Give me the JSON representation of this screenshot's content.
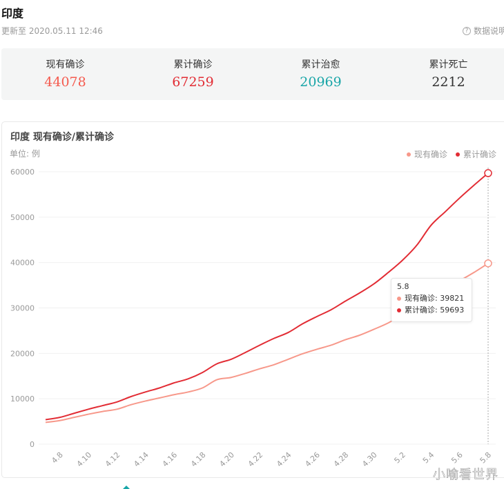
{
  "header": {
    "title": "印度",
    "update_time": "更新至 2020.05.11 12:46",
    "data_note": "数据说明",
    "data_note_icon": "question-circle-icon"
  },
  "stats": [
    {
      "label": "现有确诊",
      "value": "44078",
      "color": "#f55a4e"
    },
    {
      "label": "累计确诊",
      "value": "67259",
      "color": "#e22c34"
    },
    {
      "label": "累计治愈",
      "value": "20969",
      "color": "#18a5a7"
    },
    {
      "label": "累计死亡",
      "value": "2212",
      "color": "#333333"
    }
  ],
  "chart": {
    "title": "印度 现有确诊/累计确诊",
    "unit": "单位: 例",
    "legend": [
      {
        "label": "现有确诊",
        "color": "#f7988a"
      },
      {
        "label": "累计确诊",
        "color": "#e22c34"
      }
    ],
    "tooltip": {
      "date": "5.8",
      "rows": [
        {
          "label": "现有确诊: 39821",
          "color": "#f7988a"
        },
        {
          "label": "累计确诊: 59693",
          "color": "#e22c34"
        }
      ]
    }
  },
  "chart_data": {
    "type": "line",
    "title": "印度 现有确诊/累计确诊",
    "ylabel": "单位: 例",
    "xlabel": "",
    "ylim": [
      0,
      60000
    ],
    "yticks": [
      0,
      10000,
      20000,
      30000,
      40000,
      50000,
      60000
    ],
    "xtick_labels": [
      "4.8",
      "4.10",
      "4.12",
      "4.14",
      "4.16",
      "4.18",
      "4.20",
      "4.22",
      "4.24",
      "4.26",
      "4.28",
      "4.30",
      "5.2",
      "5.4",
      "5.6",
      "5.8"
    ],
    "grid": true,
    "legend_position": "top-right",
    "x": [
      "4.7",
      "4.8",
      "4.9",
      "4.10",
      "4.11",
      "4.12",
      "4.13",
      "4.14",
      "4.15",
      "4.16",
      "4.17",
      "4.18",
      "4.19",
      "4.20",
      "4.21",
      "4.22",
      "4.23",
      "4.24",
      "4.25",
      "4.26",
      "4.27",
      "4.28",
      "4.29",
      "4.30",
      "5.1",
      "5.2",
      "5.3",
      "5.4",
      "5.5",
      "5.6",
      "5.7",
      "5.8"
    ],
    "series": [
      {
        "name": "现有确诊",
        "color": "#f7988a",
        "values": [
          4800,
          5200,
          5900,
          6600,
          7200,
          7700,
          8700,
          9500,
          10200,
          10900,
          11500,
          12400,
          14200,
          14700,
          15600,
          16600,
          17500,
          18700,
          19900,
          20900,
          21800,
          23000,
          24000,
          25300,
          26700,
          28500,
          30500,
          32600,
          34400,
          36000,
          37800,
          39821
        ]
      },
      {
        "name": "累计确诊",
        "color": "#e22c34",
        "values": [
          5400,
          5900,
          6800,
          7700,
          8500,
          9300,
          10500,
          11500,
          12400,
          13500,
          14400,
          15800,
          17700,
          18700,
          20200,
          21800,
          23300,
          24600,
          26500,
          28100,
          29600,
          31500,
          33300,
          35300,
          37800,
          40500,
          43800,
          48200,
          51200,
          54200,
          57000,
          59693
        ]
      }
    ]
  }
}
